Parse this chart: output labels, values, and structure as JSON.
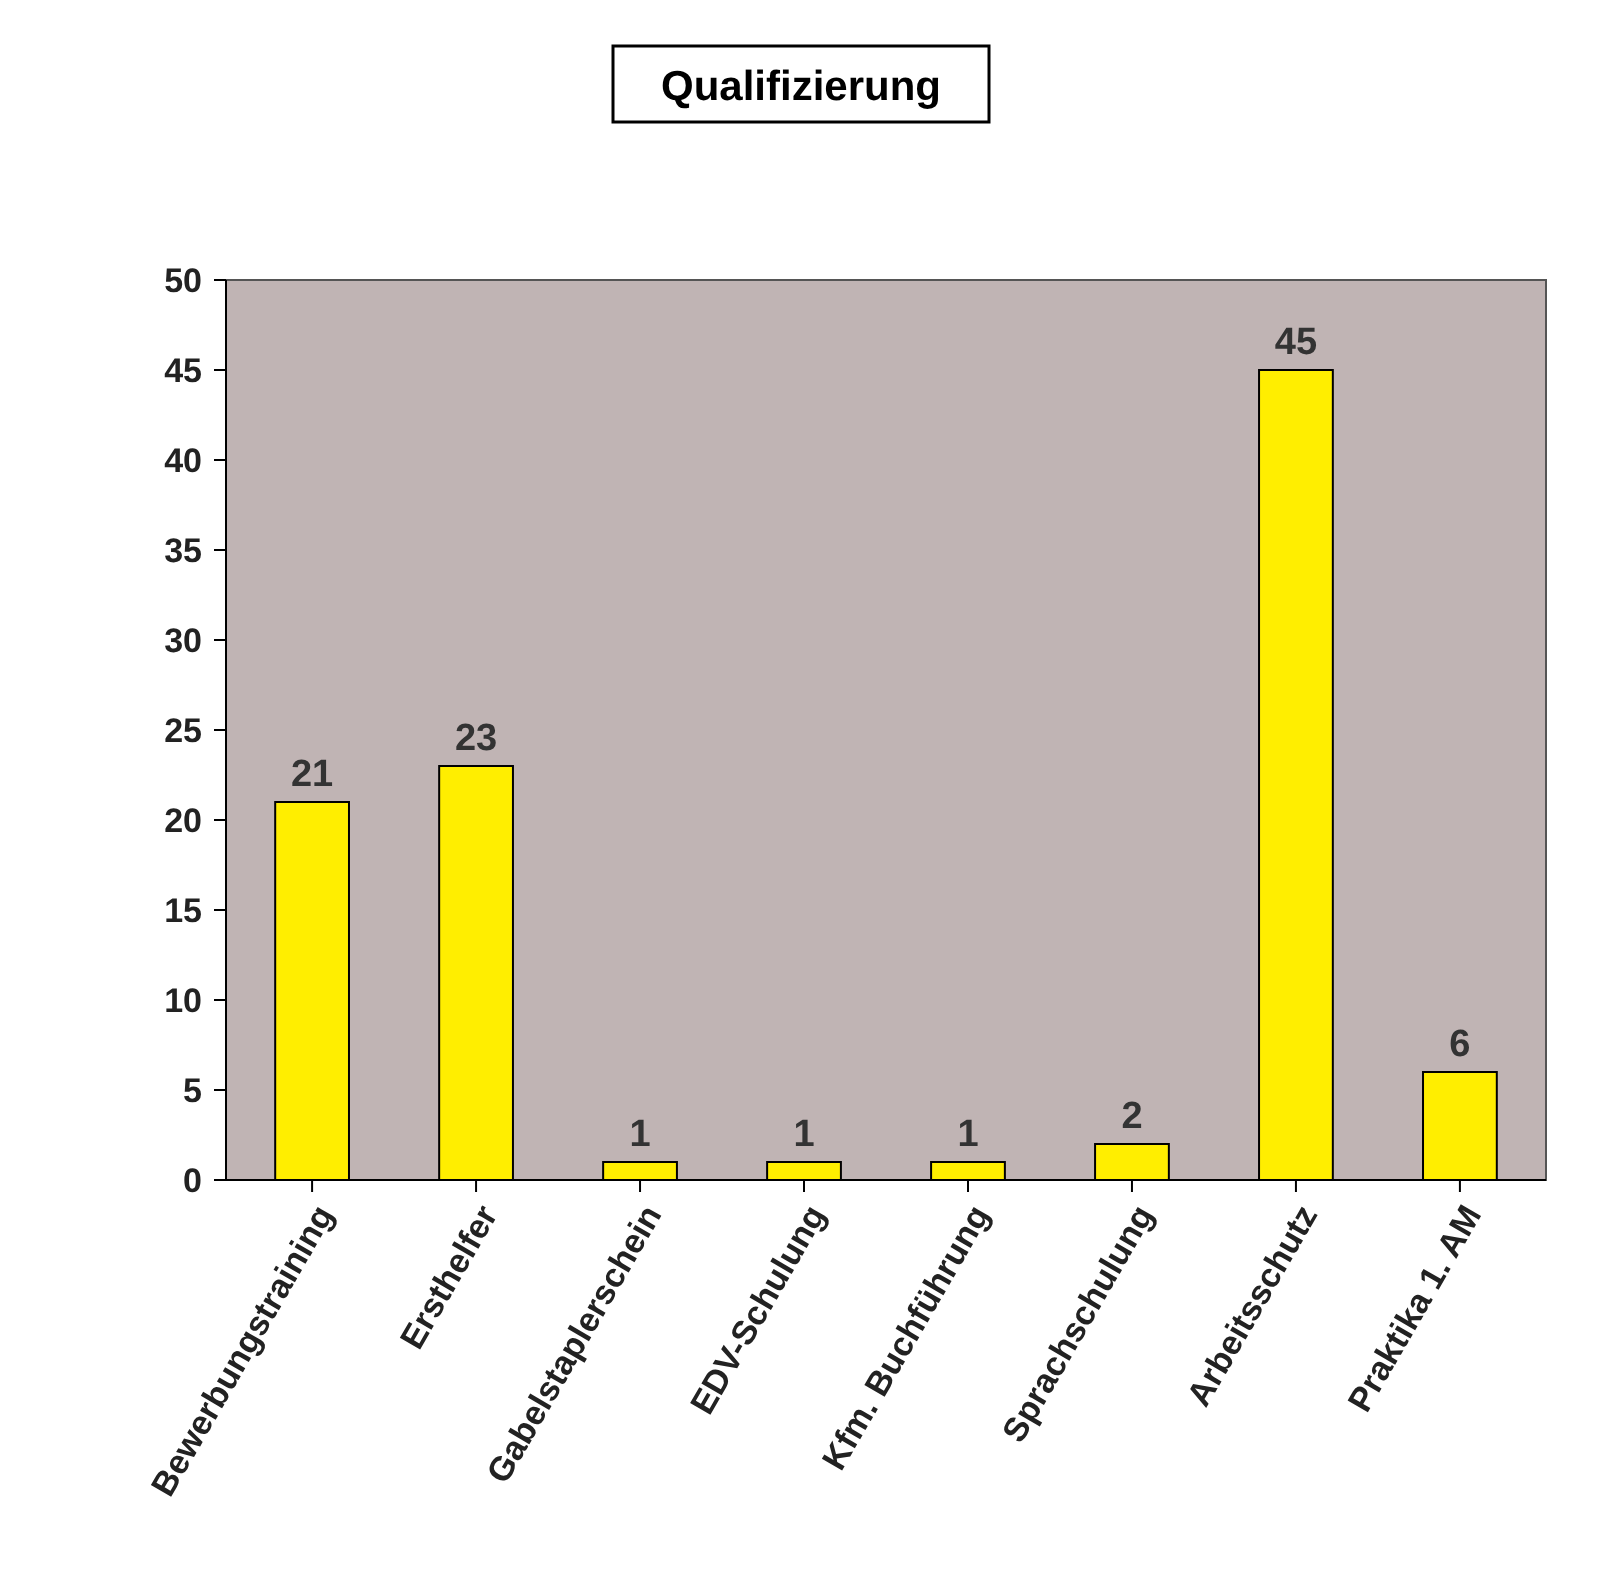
{
  "chart_data": {
    "type": "bar",
    "title": "Qualifizierung",
    "categories": [
      "Bewerbungstraining",
      "Ersthelfer",
      "Gabelstaplerschein",
      "EDV-Schulung",
      "Kfm. Buchführung",
      "Sprachschulung",
      "Arbeitsschutz",
      "Praktika 1. AM"
    ],
    "values": [
      21,
      23,
      1,
      1,
      1,
      2,
      45,
      6
    ],
    "color": "#ffee00",
    "ylim": [
      0,
      50
    ],
    "yticks": [
      0,
      5,
      10,
      15,
      20,
      25,
      30,
      35,
      40,
      45,
      50
    ],
    "grid": false,
    "data_labels": true
  }
}
